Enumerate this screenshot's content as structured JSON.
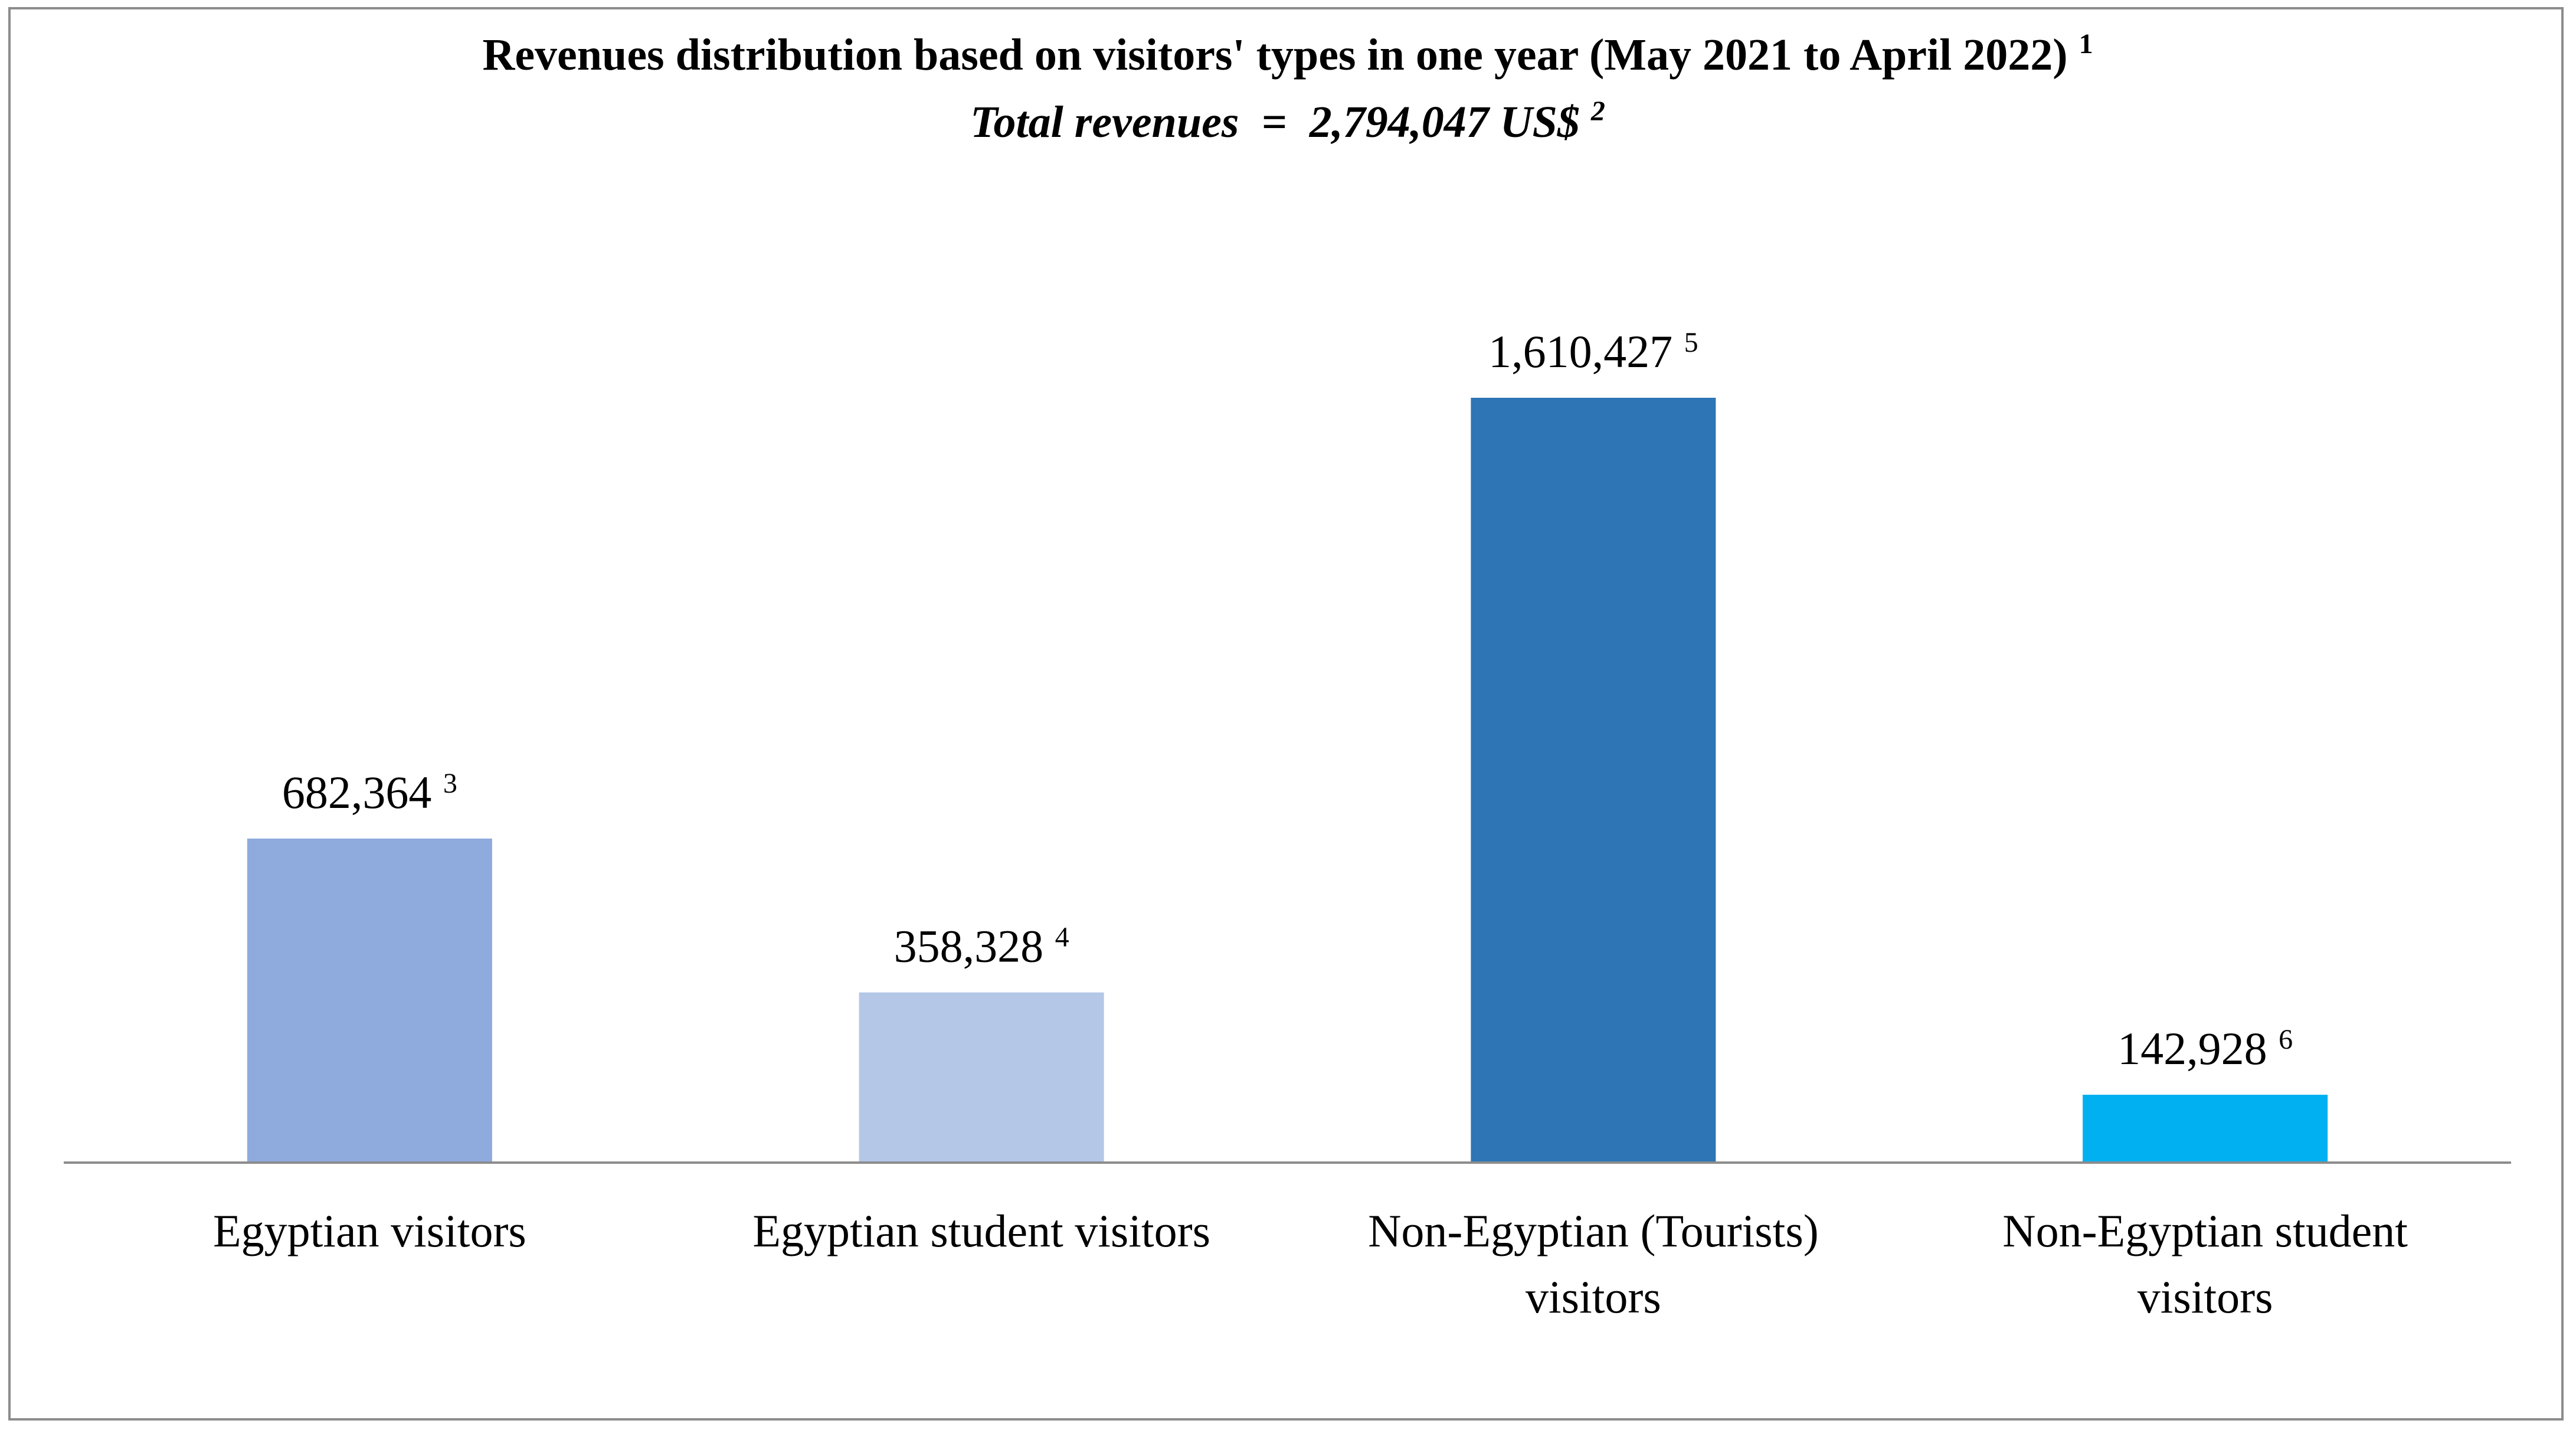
{
  "chart_data": {
    "type": "bar",
    "title": "Revenues distribution based on visitors' types in one year (May 2021 to April 2022)",
    "title_note": "1",
    "subtitle": "Total revenues  =  2,794,047 US$",
    "subtitle_note": "2",
    "categories": [
      [
        "Egyptian visitors"
      ],
      [
        "Egyptian student visitors"
      ],
      [
        "Non-Egyptian (Tourists)",
        "visitors"
      ],
      [
        "Non-Egyptian student",
        "visitors"
      ]
    ],
    "values": [
      682364,
      358328,
      1610427,
      142928
    ],
    "value_labels": [
      "682,364",
      "358,328",
      "1,610,427",
      "142,928"
    ],
    "value_notes": [
      "3",
      "4",
      "5",
      "6"
    ],
    "colors": [
      "#8faadc",
      "#b4c7e7",
      "#2e75b6",
      "#00b0f0"
    ],
    "ylim": [
      0,
      1610427
    ],
    "xlabel": "",
    "ylabel": "",
    "grid": false,
    "legend": "none"
  }
}
